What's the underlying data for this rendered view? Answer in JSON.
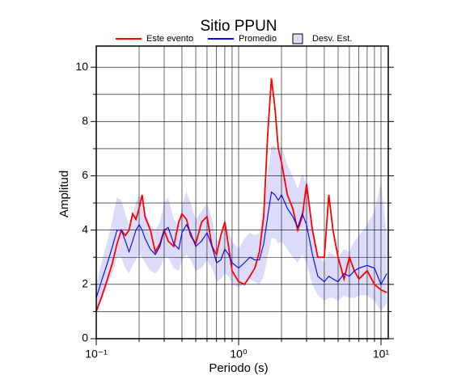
{
  "chart_data": {
    "type": "line",
    "title": "Sitio PPUN",
    "x_label": "Periodo (s)",
    "y_label": "Amplitud",
    "x": [
      0.1,
      0.11,
      0.12,
      0.13,
      0.14,
      0.15,
      0.16,
      0.17,
      0.18,
      0.19,
      0.2,
      0.21,
      0.22,
      0.24,
      0.26,
      0.28,
      0.3,
      0.32,
      0.35,
      0.38,
      0.4,
      0.43,
      0.46,
      0.5,
      0.55,
      0.6,
      0.65,
      0.7,
      0.75,
      0.8,
      0.85,
      0.9,
      1.0,
      1.1,
      1.2,
      1.3,
      1.4,
      1.5,
      1.6,
      1.7,
      1.8,
      1.9,
      2.0,
      2.2,
      2.4,
      2.6,
      2.8,
      3.0,
      3.3,
      3.6,
      4.0,
      4.3,
      4.6,
      5.0,
      5.5,
      6.0,
      6.5,
      7,
      8,
      9,
      10,
      11
    ],
    "series": [
      {
        "name": "Este evento",
        "color": "#ff0000",
        "values": [
          1.0,
          1.6,
          2.2,
          2.8,
          3.5,
          4.0,
          3.8,
          4.0,
          4.6,
          4.4,
          4.8,
          5.3,
          4.5,
          4.0,
          3.2,
          3.5,
          4.0,
          3.6,
          3.4,
          4.3,
          4.6,
          4.4,
          3.8,
          3.5,
          4.3,
          4.5,
          3.4,
          3.1,
          3.8,
          4.3,
          3.4,
          2.5,
          2.1,
          2.0,
          2.3,
          2.6,
          3.2,
          4.5,
          7.5,
          9.6,
          8.5,
          7.0,
          6.5,
          5.3,
          4.8,
          4.0,
          4.5,
          5.7,
          4.0,
          3.0,
          3.0,
          5.3,
          4.0,
          3.0,
          2.2,
          3.0,
          2.5,
          2.2,
          2.5,
          2.0,
          1.8,
          1.7
        ]
      },
      {
        "name": "Promedio",
        "color": "#0000ff",
        "values": [
          1.5,
          2.2,
          2.8,
          3.4,
          4.0,
          4.0,
          3.6,
          3.2,
          3.6,
          4.0,
          4.2,
          4.0,
          3.7,
          3.3,
          3.1,
          3.4,
          4.0,
          4.1,
          3.5,
          3.3,
          3.9,
          4.2,
          3.9,
          3.4,
          3.6,
          3.9,
          3.4,
          2.8,
          2.9,
          3.3,
          3.1,
          2.8,
          2.6,
          2.8,
          3.0,
          2.9,
          2.9,
          3.5,
          4.5,
          5.4,
          5.3,
          5.1,
          5.3,
          4.8,
          4.5,
          4.1,
          4.6,
          4.2,
          3.1,
          2.3,
          2.1,
          2.3,
          2.2,
          2.1,
          2.4,
          2.3,
          2.5,
          2.6,
          2.7,
          2.6,
          2.0,
          2.4
        ]
      },
      {
        "name": "Desv. Est.",
        "color": "#dcdcfa",
        "lower": [
          1.0,
          1.5,
          2.0,
          2.4,
          3.0,
          3.0,
          2.6,
          2.4,
          2.7,
          2.9,
          3.1,
          3.0,
          2.8,
          2.5,
          2.4,
          2.6,
          3.0,
          3.0,
          2.6,
          2.5,
          2.9,
          3.1,
          2.9,
          2.5,
          2.6,
          2.9,
          2.6,
          2.1,
          2.2,
          2.4,
          2.3,
          2.0,
          1.9,
          2.0,
          2.2,
          2.1,
          2.0,
          2.3,
          3.0,
          3.7,
          3.7,
          3.5,
          3.6,
          3.3,
          3.0,
          2.8,
          3.1,
          2.8,
          2.0,
          1.6,
          1.4,
          1.5,
          1.5,
          1.4,
          1.6,
          1.5,
          1.5,
          1.6,
          1.6,
          1.4,
          1.0,
          1.3
        ],
        "upper": [
          2.0,
          2.9,
          3.6,
          4.4,
          5.2,
          5.1,
          4.6,
          4.2,
          4.6,
          5.0,
          5.3,
          5.1,
          4.7,
          4.2,
          4.0,
          4.3,
          5.0,
          5.2,
          4.4,
          4.2,
          4.9,
          5.4,
          5.0,
          4.4,
          4.7,
          5.0,
          4.4,
          3.6,
          3.7,
          4.2,
          4.0,
          3.6,
          3.3,
          3.7,
          3.9,
          3.8,
          3.9,
          4.8,
          6.0,
          7.1,
          7.1,
          6.8,
          7.1,
          6.4,
          6.0,
          5.5,
          6.1,
          5.7,
          4.2,
          3.1,
          2.8,
          3.2,
          3.1,
          3.0,
          3.3,
          3.2,
          3.6,
          3.8,
          4.2,
          4.7,
          5.8,
          3.8
        ]
      }
    ],
    "xlim": [
      0.1,
      11.25
    ],
    "x_log": true,
    "xticks": [
      {
        "value": 0.1,
        "label": "10⁻¹"
      },
      {
        "value": 1,
        "label": "10⁰"
      },
      {
        "value": 10,
        "label": "10¹"
      }
    ],
    "xminor": [
      0.2,
      0.3,
      0.4,
      0.5,
      0.6,
      0.7,
      0.8,
      0.9,
      2,
      3,
      4,
      5,
      6,
      7,
      8,
      9
    ],
    "ylim": [
      0,
      10.78
    ],
    "yticks": [
      0,
      2,
      4,
      6,
      8,
      10
    ],
    "yminor": [
      1,
      3,
      5,
      7,
      9
    ],
    "grid": true,
    "legend": "top"
  }
}
